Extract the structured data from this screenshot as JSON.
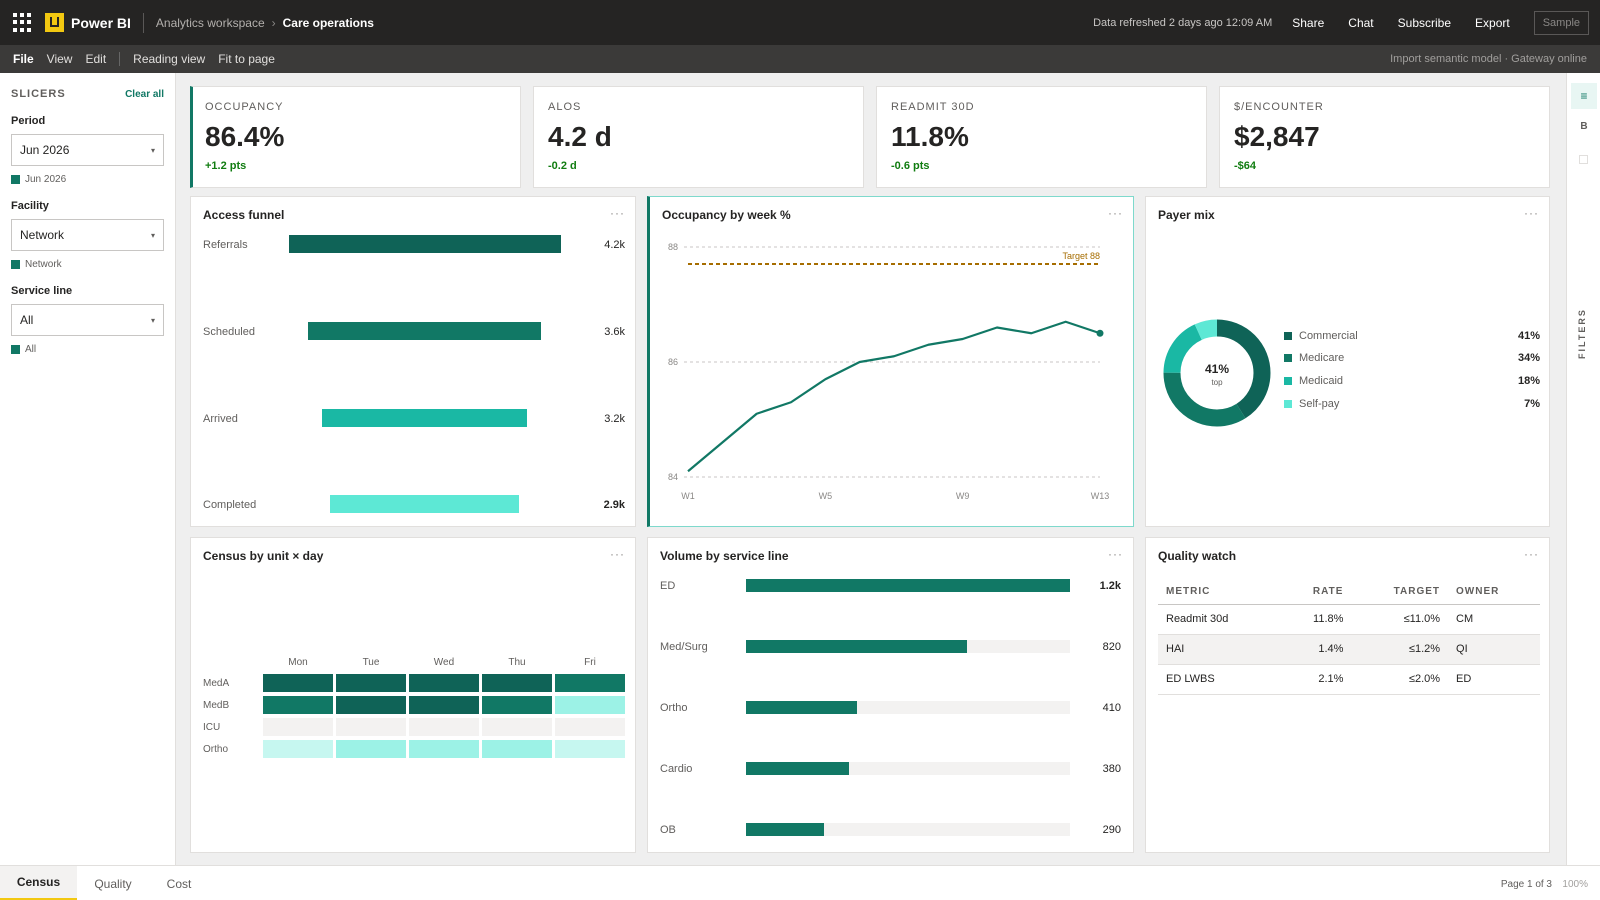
{
  "topbar": {
    "app_name": "Power BI",
    "workspace": "Analytics workspace",
    "crumb_separator": "›",
    "report": "Care operations",
    "refresh": "Data refreshed 2 days ago 12:09 AM",
    "share": "Share",
    "chat": "Chat",
    "subscribe": "Subscribe",
    "export": "Export",
    "sample": "Sample"
  },
  "menubar": {
    "file": "File",
    "view": "View",
    "edit": "Edit",
    "reading_view": "Reading view",
    "fit_to_page": "Fit to page",
    "status": "Import semantic model · Gateway online"
  },
  "slicers": {
    "title": "SLICERS",
    "clear_all": "Clear all",
    "period": {
      "label": "Period",
      "value": "Jun 2026",
      "chip": "Jun 2026"
    },
    "facility": {
      "label": "Facility",
      "value": "Network",
      "chip": "Network"
    },
    "service_line": {
      "label": "Service line",
      "value": "All",
      "chip": "All"
    }
  },
  "right_rail": {
    "active_icon": "≡",
    "b_label": "B",
    "filters": "FILTERS"
  },
  "kpis": [
    {
      "label": "OCCUPANCY",
      "value": "86.4%",
      "delta": "+1.2 pts"
    },
    {
      "label": "ALOS",
      "value": "4.2 d",
      "delta": "-0.2 d"
    },
    {
      "label": "READMIT 30D",
      "value": "11.8%",
      "delta": "-0.6 pts"
    },
    {
      "label": "$/ENCOUNTER",
      "value": "$2,847",
      "delta": "-$64"
    }
  ],
  "visual_menu": "···",
  "access_funnel": {
    "title": "Access funnel",
    "stages": [
      {
        "label": "Referrals",
        "value_label": "4.2k",
        "value": 4.2,
        "color": "#0f6357"
      },
      {
        "label": "Scheduled",
        "value_label": "3.6k",
        "value": 3.6,
        "color": "#117865"
      },
      {
        "label": "Arrived",
        "value_label": "3.2k",
        "value": 3.2,
        "color": "#1ab8a4"
      },
      {
        "label": "Completed",
        "value_label": "2.9k",
        "value": 2.9,
        "color": "#5de8d5"
      }
    ]
  },
  "occupancy_chart": {
    "title": "Occupancy by week %",
    "target_label": "Target 88"
  },
  "payer_mix": {
    "title": "Payer mix",
    "center_value": "41%",
    "center_sub": "top",
    "items": [
      {
        "name": "Commercial",
        "pct_label": "41%",
        "pct": 41,
        "color": "#0f6357"
      },
      {
        "name": "Medicare",
        "pct_label": "34%",
        "pct": 34,
        "color": "#117865"
      },
      {
        "name": "Medicaid",
        "pct_label": "18%",
        "pct": 18,
        "color": "#1ab8a4"
      },
      {
        "name": "Self-pay",
        "pct_label": "7%",
        "pct": 7,
        "color": "#5de8d5"
      }
    ]
  },
  "census": {
    "title": "Census by unit × day",
    "days": [
      "Mon",
      "Tue",
      "Wed",
      "Thu",
      "Fri"
    ],
    "units": [
      "MedA",
      "MedB",
      "ICU",
      "Ortho"
    ],
    "colors": [
      [
        "#0f6357",
        "#0f6357",
        "#0f6357",
        "#0f6357",
        "#117865"
      ],
      [
        "#117865",
        "#0f6357",
        "#0f6357",
        "#117865",
        "#9cf2e6"
      ],
      [
        "#f3f2f1",
        "#f3f2f1",
        "#f3f2f1",
        "#f3f2f1",
        "#f3f2f1"
      ],
      [
        "#c6f7f0",
        "#9cf2e6",
        "#9cf2e6",
        "#9cf2e6",
        "#c6f7f0"
      ]
    ]
  },
  "volume": {
    "title": "Volume by service line",
    "max": 1200,
    "items": [
      {
        "label": "ED",
        "value": 1200,
        "value_label": "1.2k"
      },
      {
        "label": "Med/Surg",
        "value": 820,
        "value_label": "820"
      },
      {
        "label": "Ortho",
        "value": 410,
        "value_label": "410"
      },
      {
        "label": "Cardio",
        "value": 380,
        "value_label": "380"
      },
      {
        "label": "OB",
        "value": 290,
        "value_label": "290"
      }
    ]
  },
  "quality": {
    "title": "Quality watch",
    "headers": [
      "METRIC",
      "RATE",
      "TARGET",
      "OWNER"
    ],
    "rows": [
      [
        "Readmit 30d",
        "11.8%",
        "≤11.0%",
        "CM"
      ],
      [
        "HAI",
        "1.4%",
        "≤1.2%",
        "QI"
      ],
      [
        "ED LWBS",
        "2.1%",
        "≤2.0%",
        "ED"
      ]
    ]
  },
  "bottombar": {
    "tabs": [
      "Census",
      "Quality",
      "Cost"
    ],
    "page_info": "Page 1 of 3",
    "zoom": "100%"
  },
  "chart_data": {
    "type": "line",
    "title": "Occupancy by week %",
    "x": [
      "W1",
      "W2",
      "W3",
      "W4",
      "W5",
      "W6",
      "W7",
      "W8",
      "W9",
      "W10",
      "W11",
      "W12",
      "W13"
    ],
    "xticks": [
      "W1",
      "W5",
      "W9",
      "W13"
    ],
    "series": [
      {
        "values": [
          84.1,
          84.6,
          85.1,
          85.3,
          85.7,
          86.0,
          86.1,
          86.3,
          86.4,
          86.6,
          86.5,
          86.7,
          86.5
        ]
      }
    ],
    "ylim": [
      84,
      88
    ],
    "yticks": [
      84,
      86,
      88
    ],
    "target": 88,
    "line_color": "#117865",
    "target_color": "#a66d00",
    "grid": true
  }
}
